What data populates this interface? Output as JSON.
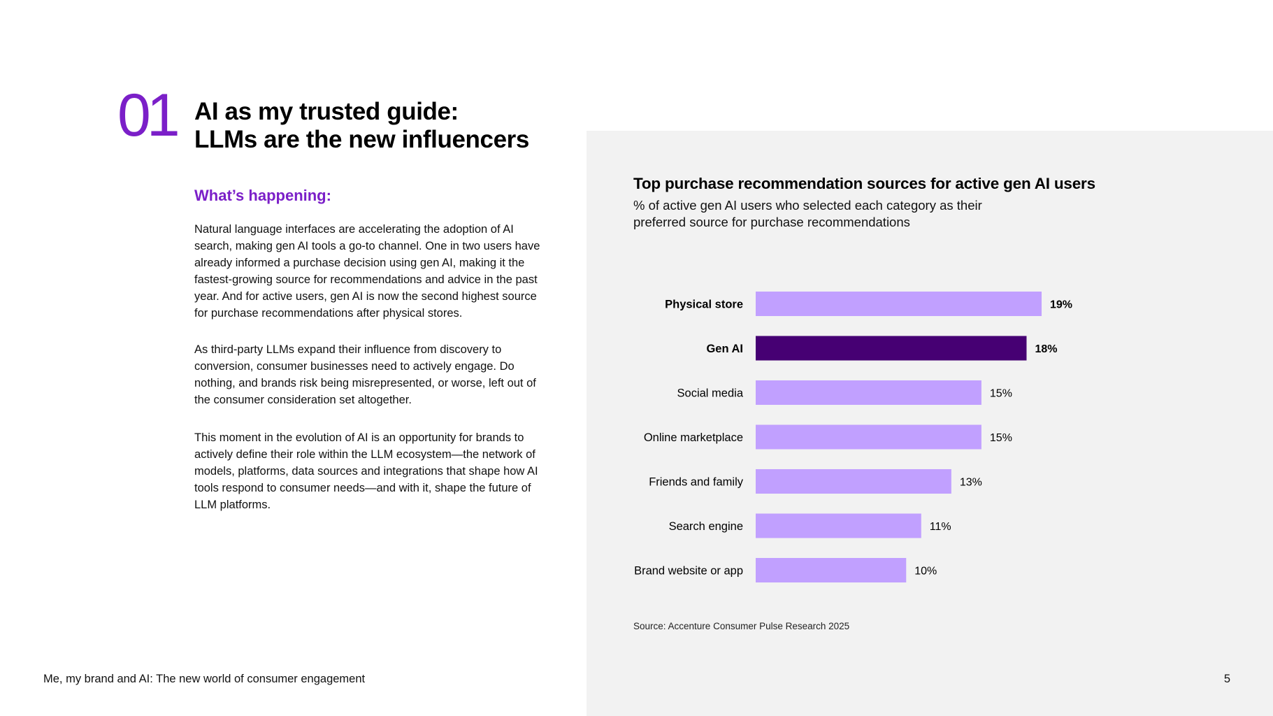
{
  "section": {
    "number": "01",
    "title_line1": "AI as my trusted guide:",
    "title_line2": "LLMs are the new influencers"
  },
  "content": {
    "subheading": "What’s happening:",
    "paragraphs": [
      "Natural language interfaces are accelerating the adoption of AI search, making gen AI tools a go-to channel. One in two users have already informed a purchase decision using gen AI, making it the fastest-growing source for recommendations and advice in the past year. And for active users, gen AI is now the second highest source for purchase recommendations after physical stores.",
      "As third-party LLMs expand their influence from discovery to conversion, consumer businesses need to actively engage. Do nothing, and brands risk being misrepresented, or worse, left out of the consumer consideration set altogether.",
      "This moment in the evolution of AI is an opportunity for brands to actively define their role within the LLM ecosystem—the network of models, platforms, data sources and integrations that shape how AI tools respond to consumer needs—and with it, shape the future of LLM platforms."
    ]
  },
  "footer": {
    "title": "Me, my brand and AI: The new world of consumer engagement",
    "page_number": "5"
  },
  "colors": {
    "accent": "#7b1fc8",
    "bar_default": "#c1a0ff",
    "bar_highlight": "#460073",
    "panel_background": "#f2f2f2"
  },
  "chart_data": {
    "type": "bar",
    "orientation": "horizontal",
    "title": "Top purchase recommendation sources for active gen AI users",
    "subtitle": "% of active gen AI users who selected each category as their preferred source for purchase recommendations",
    "categories": [
      "Physical store",
      "Gen AI",
      "Social media",
      "Online marketplace",
      "Friends and family",
      "Search engine",
      "Brand website or app"
    ],
    "values": [
      19,
      18,
      15,
      15,
      13,
      11,
      10
    ],
    "value_labels": [
      "19%",
      "18%",
      "15%",
      "15%",
      "13%",
      "11%",
      "10%"
    ],
    "unit": "%",
    "highlight_index": 1,
    "bold_labels": [
      0,
      1
    ],
    "xlim": [
      0,
      19
    ],
    "grid": false,
    "legend": "none",
    "source": "Source: Accenture Consumer Pulse Research 2025"
  }
}
